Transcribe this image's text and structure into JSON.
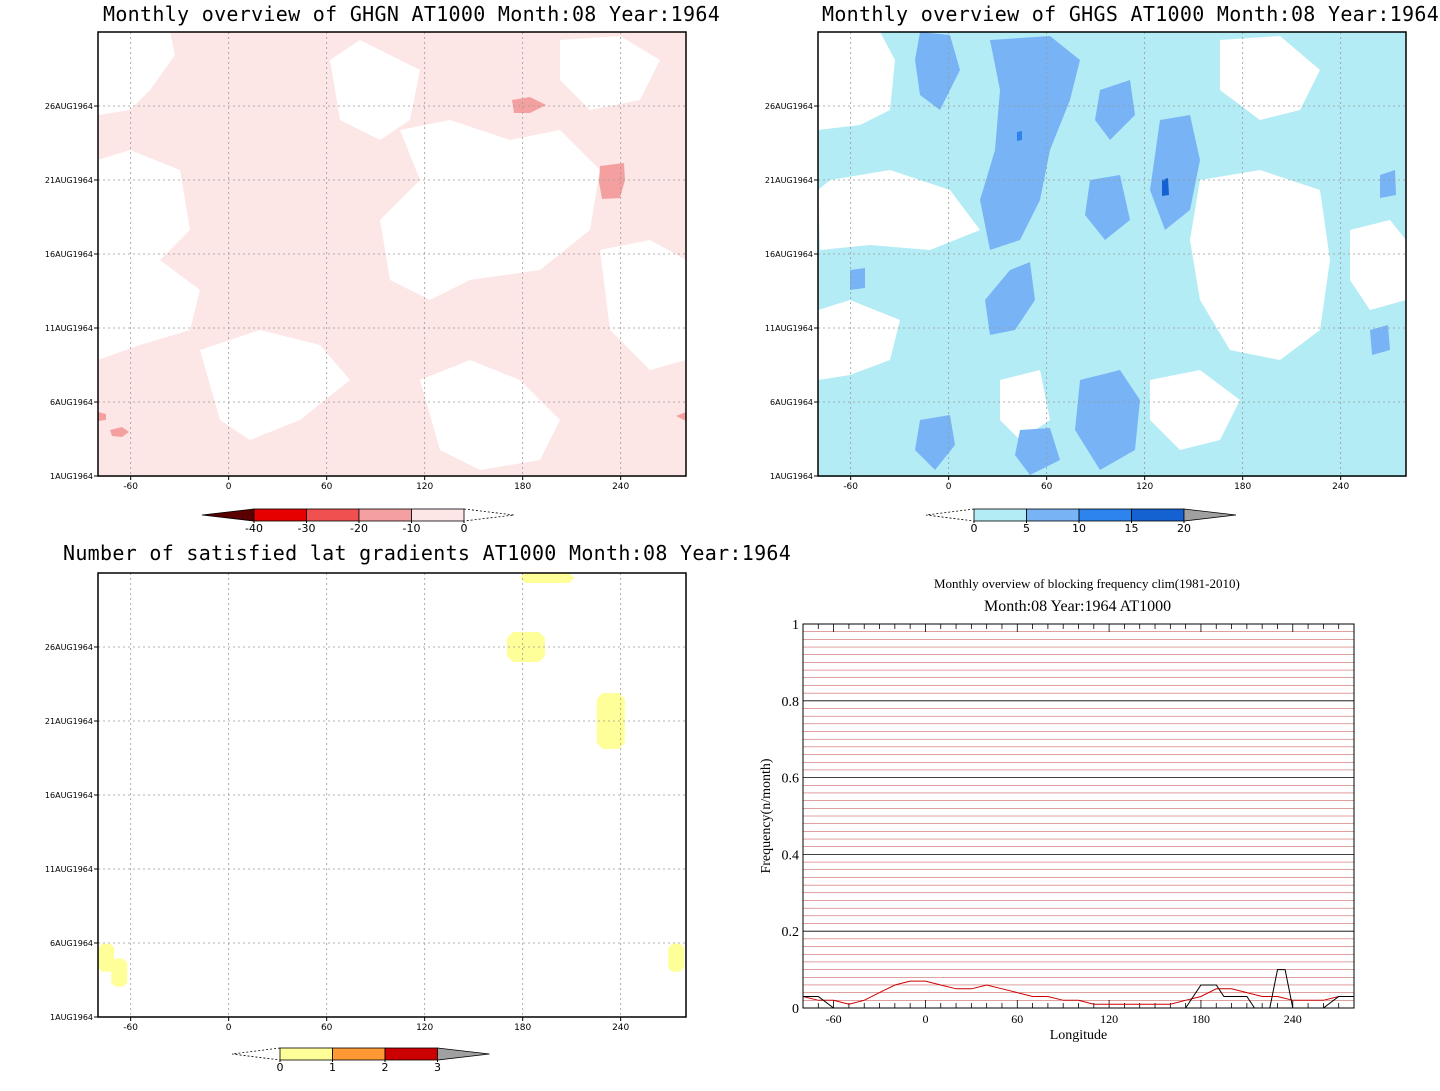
{
  "panels": {
    "ghgn": {
      "title": "Monthly overview of GHGN AT1000 Month:08 Year:1964",
      "y_ticks": [
        "26AUG1964",
        "21AUG1964",
        "16AUG1964",
        "11AUG1964",
        "6AUG1964",
        "1AUG1964"
      ],
      "x_ticks": [
        "-60",
        "0",
        "60",
        "120",
        "180",
        "240"
      ],
      "colorbar": {
        "labels": [
          "-40",
          "-30",
          "-20",
          "-10",
          "0"
        ],
        "colors": [
          "#5a0000",
          "#e60000",
          "#f05050",
          "#f5a0a0",
          "#fde6e6"
        ]
      }
    },
    "ghgs": {
      "title": "Monthly overview of GHGS AT1000 Month:08 Year:1964",
      "y_ticks": [
        "26AUG1964",
        "21AUG1964",
        "16AUG1964",
        "11AUG1964",
        "6AUG1964",
        "1AUG1964"
      ],
      "x_ticks": [
        "-60",
        "0",
        "60",
        "120",
        "180",
        "240"
      ],
      "colorbar": {
        "labels": [
          "0",
          "5",
          "10",
          "15",
          "20"
        ],
        "colors": [
          "#b4ecf5",
          "#78b4f5",
          "#2c84ec",
          "#1461d2",
          "#a0a0a0"
        ]
      }
    },
    "lat": {
      "title": "Number of satisfied lat gradients AT1000 Month:08 Year:1964",
      "y_ticks": [
        "26AUG1964",
        "21AUG1964",
        "16AUG1964",
        "11AUG1964",
        "6AUG1964",
        "1AUG1964"
      ],
      "x_ticks": [
        "-60",
        "0",
        "60",
        "120",
        "180",
        "240"
      ],
      "colorbar": {
        "labels": [
          "0",
          "1",
          "2",
          "3"
        ],
        "colors": [
          "#ffff99",
          "#ff9933",
          "#cc0000",
          "#a0a0a0"
        ]
      }
    },
    "freq": {
      "title": "Monthly overview of blocking frequency clim(1981-2010)",
      "subtitle": "Month:08 Year:1964  AT1000"
    }
  },
  "chart_data": [
    {
      "type": "heatmap",
      "title": "Monthly overview of GHGN AT1000 Month:08 Year:1964",
      "x_ticks": [
        -60,
        0,
        60,
        120,
        180,
        240
      ],
      "xlim": [
        -80,
        280
      ],
      "y_ticks": [
        "1AUG1964",
        "6AUG1964",
        "11AUG1964",
        "16AUG1964",
        "21AUG1964",
        "26AUG1964"
      ],
      "color_levels": [
        -40,
        -30,
        -20,
        -10,
        0
      ],
      "colors": [
        "#5a0000",
        "#e60000",
        "#f05050",
        "#f5a0a0",
        "#fde6e6"
      ]
    },
    {
      "type": "heatmap",
      "title": "Monthly overview of GHGS AT1000 Month:08 Year:1964",
      "x_ticks": [
        -60,
        0,
        60,
        120,
        180,
        240
      ],
      "xlim": [
        -80,
        280
      ],
      "y_ticks": [
        "1AUG1964",
        "6AUG1964",
        "11AUG1964",
        "16AUG1964",
        "21AUG1964",
        "26AUG1964"
      ],
      "color_levels": [
        0,
        5,
        10,
        15,
        20
      ],
      "colors": [
        "#b4ecf5",
        "#78b4f5",
        "#2c84ec",
        "#1461d2",
        "#a0a0a0"
      ]
    },
    {
      "type": "heatmap",
      "title": "Number of satisfied lat gradients AT1000 Month:08 Year:1964",
      "x_ticks": [
        -60,
        0,
        60,
        120,
        180,
        240
      ],
      "xlim": [
        -80,
        280
      ],
      "y_ticks": [
        "1AUG1964",
        "6AUG1964",
        "11AUG1964",
        "16AUG1964",
        "21AUG1964",
        "26AUG1964"
      ],
      "color_levels": [
        0,
        1,
        2,
        3
      ],
      "colors": [
        "#ffff99",
        "#ff9933",
        "#cc0000",
        "#a0a0a0"
      ],
      "blobs": [
        {
          "lon": 195,
          "day": 31,
          "value": 1
        },
        {
          "lon": 182,
          "day": 26,
          "value": 1
        },
        {
          "lon": 234,
          "day": 21,
          "value": 1
        },
        {
          "lon": -75,
          "day": 5,
          "value": 1
        },
        {
          "lon": -67,
          "day": 4,
          "value": 1
        },
        {
          "lon": 274,
          "day": 5,
          "value": 1
        }
      ]
    },
    {
      "type": "line",
      "title": "Monthly overview of blocking frequency clim(1981-2010)",
      "subtitle": "Month:08 Year:1964  AT1000",
      "xlabel": "Longitude",
      "ylabel": "Frequency(n/month)",
      "xlim": [
        -80,
        280
      ],
      "ylim": [
        0,
        1
      ],
      "x_ticks": [
        -60,
        0,
        60,
        120,
        180,
        240
      ],
      "y_ticks": [
        0,
        0.2,
        0.4,
        0.6,
        0.8,
        1
      ],
      "series": [
        {
          "color": "#cc0000",
          "x": [
            -80,
            -70,
            -60,
            -50,
            -40,
            -30,
            -20,
            -10,
            0,
            10,
            20,
            30,
            40,
            50,
            60,
            70,
            80,
            90,
            100,
            110,
            120,
            130,
            140,
            150,
            160,
            170,
            180,
            190,
            200,
            210,
            220,
            230,
            240,
            250,
            260,
            270,
            280
          ],
          "y": [
            0.03,
            0.02,
            0.02,
            0.01,
            0.02,
            0.04,
            0.06,
            0.07,
            0.07,
            0.06,
            0.05,
            0.05,
            0.06,
            0.05,
            0.04,
            0.03,
            0.03,
            0.02,
            0.02,
            0.01,
            0.01,
            0.01,
            0.01,
            0.01,
            0.01,
            0.02,
            0.03,
            0.05,
            0.05,
            0.04,
            0.03,
            0.03,
            0.02,
            0.02,
            0.02,
            0.03,
            0.03
          ]
        },
        {
          "color": "#000000",
          "x": [
            -80,
            -70,
            -60,
            -50,
            -40,
            170,
            175,
            180,
            185,
            190,
            195,
            200,
            205,
            210,
            215,
            220,
            225,
            230,
            235,
            240,
            245,
            250,
            255,
            260,
            270,
            280
          ],
          "y": [
            0.03,
            0.03,
            0,
            0,
            0,
            0,
            0.03,
            0.06,
            0.06,
            0.06,
            0.03,
            0.03,
            0.03,
            0.03,
            0,
            0,
            0,
            0.1,
            0.1,
            0,
            0,
            0,
            0,
            0,
            0.03,
            0.03
          ]
        }
      ]
    }
  ]
}
